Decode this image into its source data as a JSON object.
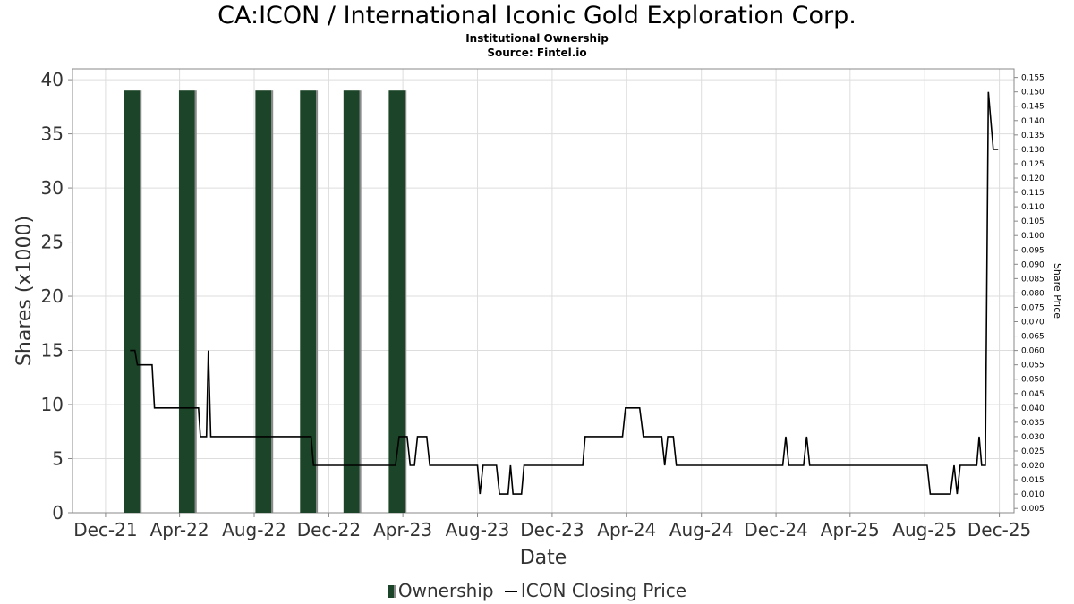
{
  "header": {
    "title": "CA:ICON / International Iconic Gold Exploration Corp.",
    "subtitle": "Institutional Ownership",
    "source": "Source: Fintel.io"
  },
  "legend": {
    "ownership": "Ownership",
    "price": "ICON Closing Price"
  },
  "colors": {
    "bar": "#1c4428",
    "bar_shadow": "#8a8a8a",
    "line": "#000000",
    "grid": "#dddddd"
  },
  "chart_data": {
    "type": "bar",
    "title": "CA:ICON / International Iconic Gold Exploration Corp.",
    "subtitle": "Institutional Ownership",
    "xlabel": "Date",
    "ylabel": "Shares (x1000)",
    "y2label": "Share Price",
    "x_ticks": [
      "Dec-21",
      "Apr-22",
      "Aug-22",
      "Dec-22",
      "Apr-23",
      "Aug-23",
      "Dec-23",
      "Apr-24",
      "Aug-24",
      "Dec-24",
      "Apr-25",
      "Aug-25",
      "Dec-25"
    ],
    "x_range": [
      "2021-10-08",
      "2025-12-25"
    ],
    "y_ticks": [
      0,
      5,
      10,
      15,
      20,
      25,
      30,
      35,
      40
    ],
    "ylim": [
      0,
      41
    ],
    "y2_ticks": [
      0.005,
      0.01,
      0.015,
      0.02,
      0.025,
      0.03,
      0.035,
      0.04,
      0.045,
      0.05,
      0.055,
      0.06,
      0.065,
      0.07,
      0.075,
      0.08,
      0.085,
      0.09,
      0.095,
      0.1,
      0.105,
      0.11,
      0.115,
      0.12,
      0.125,
      0.13,
      0.135,
      0.14,
      0.145,
      0.15,
      0.155
    ],
    "y2lim": [
      0.0035,
      0.158
    ],
    "grid": true,
    "legend_position": "bottom",
    "series": [
      {
        "name": "Ownership",
        "type": "bar",
        "points": [
          {
            "date": "2021-12-31",
            "value": 39
          },
          {
            "date": "2022-03-31",
            "value": 39
          },
          {
            "date": "2022-08-03",
            "value": 39
          },
          {
            "date": "2022-10-15",
            "value": 39
          },
          {
            "date": "2022-12-25",
            "value": 39
          },
          {
            "date": "2023-03-09",
            "value": 39
          }
        ]
      },
      {
        "name": "ICON Closing Price",
        "type": "line",
        "axis": "right",
        "points": [
          [
            "2022-01-10",
            0.06
          ],
          [
            "2022-01-18",
            0.06
          ],
          [
            "2022-01-22",
            0.055
          ],
          [
            "2022-02-15",
            0.055
          ],
          [
            "2022-02-19",
            0.04
          ],
          [
            "2022-04-27",
            0.04
          ],
          [
            "2022-05-02",
            0.04
          ],
          [
            "2022-05-05",
            0.03
          ],
          [
            "2022-05-15",
            0.03
          ],
          [
            "2022-05-18",
            0.06
          ],
          [
            "2022-05-22",
            0.03
          ],
          [
            "2022-11-02",
            0.03
          ],
          [
            "2022-11-06",
            0.02
          ],
          [
            "2023-03-20",
            0.02
          ],
          [
            "2023-03-26",
            0.03
          ],
          [
            "2023-04-08",
            0.03
          ],
          [
            "2023-04-13",
            0.02
          ],
          [
            "2023-04-20",
            0.02
          ],
          [
            "2023-04-25",
            0.03
          ],
          [
            "2023-05-10",
            0.03
          ],
          [
            "2023-05-15",
            0.02
          ],
          [
            "2023-08-01",
            0.02
          ],
          [
            "2023-08-05",
            0.01
          ],
          [
            "2023-08-10",
            0.02
          ],
          [
            "2023-09-01",
            0.02
          ],
          [
            "2023-09-06",
            0.01
          ],
          [
            "2023-09-20",
            0.01
          ],
          [
            "2023-09-24",
            0.02
          ],
          [
            "2023-09-28",
            0.01
          ],
          [
            "2023-10-12",
            0.01
          ],
          [
            "2023-10-16",
            0.02
          ],
          [
            "2024-01-20",
            0.02
          ],
          [
            "2024-01-24",
            0.03
          ],
          [
            "2024-03-25",
            0.03
          ],
          [
            "2024-03-30",
            0.04
          ],
          [
            "2024-04-22",
            0.04
          ],
          [
            "2024-04-28",
            0.03
          ],
          [
            "2024-05-28",
            0.03
          ],
          [
            "2024-06-02",
            0.02
          ],
          [
            "2024-06-07",
            0.03
          ],
          [
            "2024-06-16",
            0.03
          ],
          [
            "2024-06-21",
            0.02
          ],
          [
            "2024-12-12",
            0.02
          ],
          [
            "2024-12-17",
            0.03
          ],
          [
            "2024-12-22",
            0.02
          ],
          [
            "2025-01-15",
            0.02
          ],
          [
            "2025-01-20",
            0.03
          ],
          [
            "2025-01-25",
            0.02
          ],
          [
            "2025-08-05",
            0.02
          ],
          [
            "2025-08-10",
            0.01
          ],
          [
            "2025-09-12",
            0.01
          ],
          [
            "2025-09-18",
            0.02
          ],
          [
            "2025-09-23",
            0.01
          ],
          [
            "2025-09-28",
            0.02
          ],
          [
            "2025-10-25",
            0.02
          ],
          [
            "2025-10-29",
            0.03
          ],
          [
            "2025-11-02",
            0.02
          ],
          [
            "2025-11-08",
            0.02
          ],
          [
            "2025-11-13",
            0.15
          ],
          [
            "2025-11-21",
            0.13
          ],
          [
            "2025-11-29",
            0.13
          ]
        ]
      }
    ]
  }
}
